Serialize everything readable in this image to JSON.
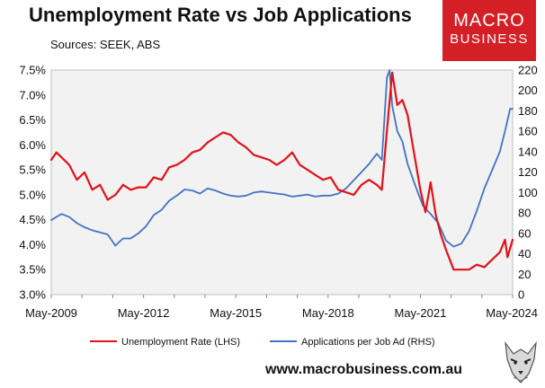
{
  "header": {
    "title": "Unemployment Rate vs Job Applications",
    "subtitle": "Sources: SEEK, ABS"
  },
  "logo": {
    "line1": "MACRO",
    "line2": "BUSINESS"
  },
  "footer": {
    "website": "www.macrobusiness.com.au"
  },
  "colors": {
    "red": "#e11219",
    "blue": "#4472c4",
    "plot_bg": "#f2f2f2",
    "logo_bg": "#d51f26"
  },
  "chart_data": {
    "type": "line",
    "x_tick_labels": [
      "May-2009",
      "May-2012",
      "May-2015",
      "May-2018",
      "May-2021",
      "May-2024"
    ],
    "xlim": [
      "2009-05",
      "2024-05"
    ],
    "left_axis": {
      "ylim": [
        3.0,
        7.5
      ],
      "tick_labels": [
        "3.0%",
        "3.5%",
        "4.0%",
        "4.5%",
        "5.0%",
        "5.5%",
        "6.0%",
        "6.5%",
        "7.0%",
        "7.5%"
      ]
    },
    "right_axis": {
      "ylim": [
        0,
        220
      ],
      "tick_labels": [
        "0",
        "20",
        "40",
        "60",
        "80",
        "100",
        "120",
        "140",
        "160",
        "180",
        "200",
        "220"
      ]
    },
    "grid": false,
    "legend_position": "bottom",
    "series": [
      {
        "name": "Unemployment Rate (LHS)",
        "axis": "left",
        "color": "#e11219",
        "points": [
          [
            "2009-05",
            5.7
          ],
          [
            "2009-07",
            5.85
          ],
          [
            "2009-09",
            5.75
          ],
          [
            "2009-12",
            5.6
          ],
          [
            "2010-03",
            5.3
          ],
          [
            "2010-06",
            5.45
          ],
          [
            "2010-09",
            5.1
          ],
          [
            "2010-12",
            5.2
          ],
          [
            "2011-03",
            4.9
          ],
          [
            "2011-06",
            5.0
          ],
          [
            "2011-09",
            5.2
          ],
          [
            "2011-12",
            5.1
          ],
          [
            "2012-03",
            5.15
          ],
          [
            "2012-06",
            5.15
          ],
          [
            "2012-09",
            5.35
          ],
          [
            "2012-12",
            5.3
          ],
          [
            "2013-03",
            5.55
          ],
          [
            "2013-06",
            5.6
          ],
          [
            "2013-09",
            5.7
          ],
          [
            "2013-12",
            5.85
          ],
          [
            "2014-03",
            5.9
          ],
          [
            "2014-06",
            6.05
          ],
          [
            "2014-09",
            6.15
          ],
          [
            "2014-12",
            6.25
          ],
          [
            "2015-03",
            6.2
          ],
          [
            "2015-06",
            6.05
          ],
          [
            "2015-09",
            5.95
          ],
          [
            "2015-12",
            5.8
          ],
          [
            "2016-03",
            5.75
          ],
          [
            "2016-06",
            5.7
          ],
          [
            "2016-09",
            5.6
          ],
          [
            "2016-12",
            5.7
          ],
          [
            "2017-03",
            5.85
          ],
          [
            "2017-06",
            5.6
          ],
          [
            "2017-09",
            5.5
          ],
          [
            "2017-12",
            5.4
          ],
          [
            "2018-03",
            5.3
          ],
          [
            "2018-06",
            5.35
          ],
          [
            "2018-09",
            5.1
          ],
          [
            "2018-12",
            5.05
          ],
          [
            "2019-03",
            5.0
          ],
          [
            "2019-06",
            5.2
          ],
          [
            "2019-09",
            5.3
          ],
          [
            "2019-12",
            5.2
          ],
          [
            "2020-02",
            5.1
          ],
          [
            "2020-04",
            6.3
          ],
          [
            "2020-06",
            7.45
          ],
          [
            "2020-08",
            6.8
          ],
          [
            "2020-10",
            6.9
          ],
          [
            "2020-12",
            6.6
          ],
          [
            "2021-03",
            5.7
          ],
          [
            "2021-05",
            5.1
          ],
          [
            "2021-07",
            4.65
          ],
          [
            "2021-09",
            5.25
          ],
          [
            "2021-11",
            4.6
          ],
          [
            "2022-01",
            4.2
          ],
          [
            "2022-03",
            3.9
          ],
          [
            "2022-06",
            3.5
          ],
          [
            "2022-09",
            3.5
          ],
          [
            "2022-12",
            3.5
          ],
          [
            "2023-03",
            3.6
          ],
          [
            "2023-06",
            3.55
          ],
          [
            "2023-09",
            3.7
          ],
          [
            "2023-12",
            3.85
          ],
          [
            "2024-02",
            4.1
          ],
          [
            "2024-03",
            3.75
          ],
          [
            "2024-05",
            4.1
          ]
        ]
      },
      {
        "name": "Applications per Job Ad (RHS)",
        "axis": "right",
        "color": "#4472c4",
        "points": [
          [
            "2009-05",
            73
          ],
          [
            "2009-09",
            79
          ],
          [
            "2009-12",
            76
          ],
          [
            "2010-03",
            70
          ],
          [
            "2010-06",
            66
          ],
          [
            "2010-09",
            63
          ],
          [
            "2010-12",
            61
          ],
          [
            "2011-03",
            59
          ],
          [
            "2011-06",
            48
          ],
          [
            "2011-09",
            55
          ],
          [
            "2011-12",
            55
          ],
          [
            "2012-03",
            60
          ],
          [
            "2012-06",
            67
          ],
          [
            "2012-09",
            78
          ],
          [
            "2012-12",
            83
          ],
          [
            "2013-03",
            92
          ],
          [
            "2013-06",
            97
          ],
          [
            "2013-09",
            103
          ],
          [
            "2013-12",
            102
          ],
          [
            "2014-03",
            99
          ],
          [
            "2014-06",
            104
          ],
          [
            "2014-09",
            102
          ],
          [
            "2014-12",
            99
          ],
          [
            "2015-03",
            97
          ],
          [
            "2015-06",
            96
          ],
          [
            "2015-09",
            97
          ],
          [
            "2015-12",
            100
          ],
          [
            "2016-03",
            101
          ],
          [
            "2016-06",
            100
          ],
          [
            "2016-09",
            99
          ],
          [
            "2016-12",
            98
          ],
          [
            "2017-03",
            96
          ],
          [
            "2017-06",
            97
          ],
          [
            "2017-09",
            98
          ],
          [
            "2017-12",
            96
          ],
          [
            "2018-03",
            97
          ],
          [
            "2018-06",
            97
          ],
          [
            "2018-09",
            99
          ],
          [
            "2018-12",
            104
          ],
          [
            "2019-03",
            112
          ],
          [
            "2019-06",
            120
          ],
          [
            "2019-09",
            128
          ],
          [
            "2019-12",
            138
          ],
          [
            "2020-02",
            132
          ],
          [
            "2020-04",
            213
          ],
          [
            "2020-05",
            220
          ],
          [
            "2020-06",
            185
          ],
          [
            "2020-08",
            160
          ],
          [
            "2020-10",
            150
          ],
          [
            "2020-12",
            128
          ],
          [
            "2021-03",
            107
          ],
          [
            "2021-06",
            87
          ],
          [
            "2021-09",
            79
          ],
          [
            "2021-12",
            70
          ],
          [
            "2022-03",
            53
          ],
          [
            "2022-06",
            47
          ],
          [
            "2022-09",
            50
          ],
          [
            "2022-12",
            62
          ],
          [
            "2023-03",
            82
          ],
          [
            "2023-06",
            104
          ],
          [
            "2023-09",
            122
          ],
          [
            "2023-12",
            140
          ],
          [
            "2024-02",
            160
          ],
          [
            "2024-04",
            182
          ],
          [
            "2024-05",
            182
          ]
        ]
      }
    ]
  }
}
